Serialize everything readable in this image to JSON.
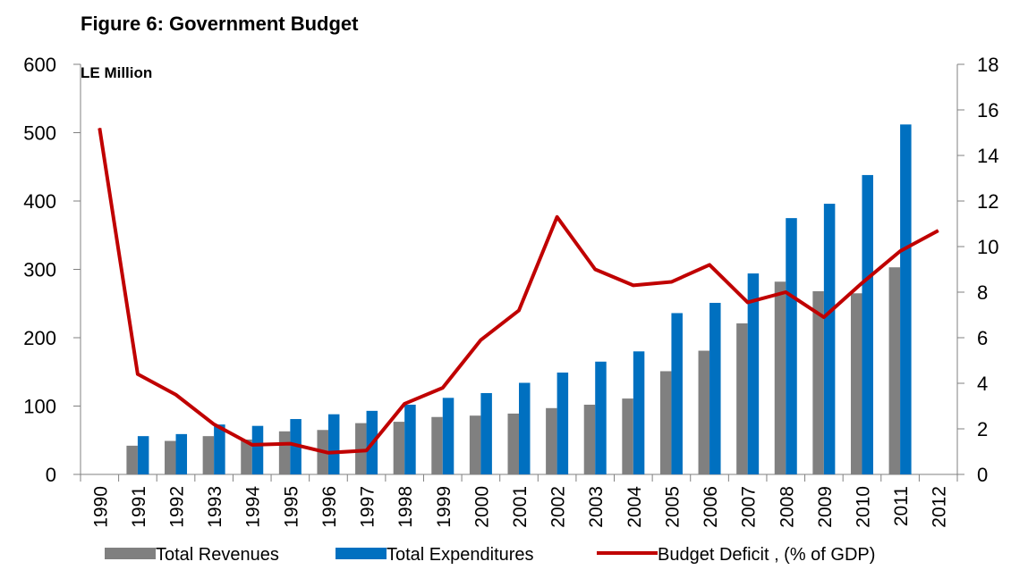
{
  "chart_data": {
    "type": "bar",
    "title": "Figure 6: Government Budget",
    "y_left_label": "LE Million",
    "y_left_lim": [
      0,
      600
    ],
    "y_left_ticks": [
      0,
      100,
      200,
      300,
      400,
      500,
      600
    ],
    "y_right_lim": [
      0,
      18
    ],
    "y_right_ticks": [
      0,
      2,
      4,
      6,
      8,
      10,
      12,
      14,
      16,
      18
    ],
    "categories": [
      "1990",
      "1991",
      "1992",
      "1993",
      "1994",
      "1995",
      "1996",
      "1997",
      "1998",
      "1999",
      "2000",
      "2001",
      "2002",
      "2003",
      "2004",
      "2005",
      "2006",
      "2007",
      "2008",
      "2009",
      "2010",
      "2011",
      "2012"
    ],
    "series": [
      {
        "name": "Total Revenues",
        "type": "bar",
        "axis": "left",
        "color": "#808080",
        "values": [
          null,
          42,
          49,
          56,
          51,
          63,
          65,
          75,
          77,
          84,
          86,
          89,
          97,
          102,
          111,
          151,
          181,
          221,
          282,
          268,
          265,
          303,
          null
        ]
      },
      {
        "name": "Total Expenditures",
        "type": "bar",
        "axis": "left",
        "color": "#0070c0",
        "values": [
          null,
          56,
          59,
          73,
          71,
          81,
          88,
          93,
          102,
          112,
          119,
          134,
          149,
          165,
          180,
          236,
          251,
          294,
          375,
          396,
          438,
          512,
          null
        ]
      },
      {
        "name": "Budget Deficit , (% of GDP)",
        "type": "line",
        "axis": "right",
        "color": "#c00000",
        "values": [
          15.2,
          4.4,
          3.5,
          2.2,
          1.3,
          1.35,
          0.95,
          1.05,
          3.1,
          3.8,
          5.9,
          7.2,
          11.3,
          9.0,
          8.3,
          8.45,
          9.2,
          7.55,
          8.0,
          6.9,
          8.4,
          9.8,
          10.7
        ]
      }
    ],
    "legend_position": "bottom",
    "grid": false
  }
}
